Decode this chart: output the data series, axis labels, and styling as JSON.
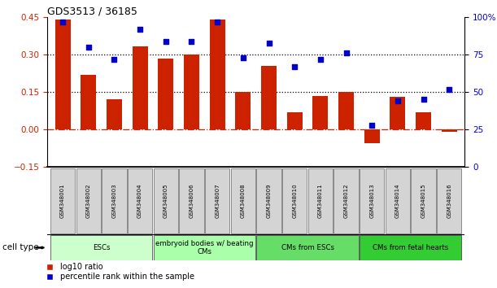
{
  "title": "GDS3513 / 36185",
  "samples": [
    "GSM348001",
    "GSM348002",
    "GSM348003",
    "GSM348004",
    "GSM348005",
    "GSM348006",
    "GSM348007",
    "GSM348008",
    "GSM348009",
    "GSM348010",
    "GSM348011",
    "GSM348012",
    "GSM348013",
    "GSM348014",
    "GSM348015",
    "GSM348016"
  ],
  "log10_ratio": [
    0.44,
    0.22,
    0.12,
    0.335,
    0.285,
    0.3,
    0.44,
    0.15,
    0.255,
    0.07,
    0.135,
    0.15,
    -0.055,
    0.13,
    0.07,
    -0.01
  ],
  "percentile_rank": [
    97,
    80,
    72,
    92,
    84,
    84,
    97,
    73,
    83,
    67,
    72,
    76,
    28,
    44,
    45,
    52
  ],
  "bar_color": "#cc2200",
  "dot_color": "#0000cc",
  "groups": [
    {
      "label": "ESCs",
      "start": 0,
      "end": 3
    },
    {
      "label": "embryoid bodies w/ beating\nCMs",
      "start": 4,
      "end": 7
    },
    {
      "label": "CMs from ESCs",
      "start": 8,
      "end": 11
    },
    {
      "label": "CMs from fetal hearts",
      "start": 12,
      "end": 15
    }
  ],
  "group_colors": [
    "#ccffcc",
    "#aaffaa",
    "#66dd66",
    "#33cc33"
  ],
  "ylim_left": [
    -0.15,
    0.45
  ],
  "ylim_right": [
    0,
    100
  ],
  "yticks_left": [
    -0.15,
    0,
    0.15,
    0.3,
    0.45
  ],
  "yticks_right": [
    0,
    25,
    50,
    75,
    100
  ],
  "right_ytick_labels": [
    "0",
    "25",
    "50",
    "75",
    "100%"
  ],
  "hlines": [
    0.15,
    0.3
  ],
  "legend_labels": [
    "log10 ratio",
    "percentile rank within the sample"
  ],
  "cell_type_label": "cell type",
  "bar_color_label": "#cc2200",
  "dot_color_label": "#0000cc"
}
